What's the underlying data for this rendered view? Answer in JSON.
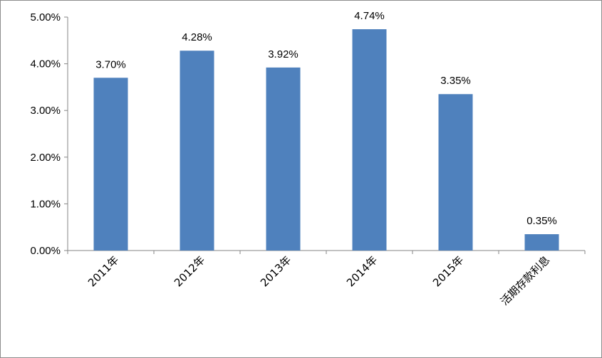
{
  "chart_data": {
    "type": "bar",
    "categories": [
      "2011年",
      "2012年",
      "2013年",
      "2014年",
      "2015年",
      "活期存款利息"
    ],
    "values": [
      3.7,
      4.28,
      3.92,
      4.74,
      3.35,
      0.35
    ],
    "data_labels": [
      "3.70%",
      "4.28%",
      "3.92%",
      "4.74%",
      "3.35%",
      "0.35%"
    ],
    "y_ticks": [
      "0.00%",
      "1.00%",
      "2.00%",
      "3.00%",
      "4.00%",
      "5.00%"
    ],
    "ylim": [
      0,
      5
    ],
    "bar_color": "#4f81bd",
    "grid": false,
    "legend": "none"
  }
}
